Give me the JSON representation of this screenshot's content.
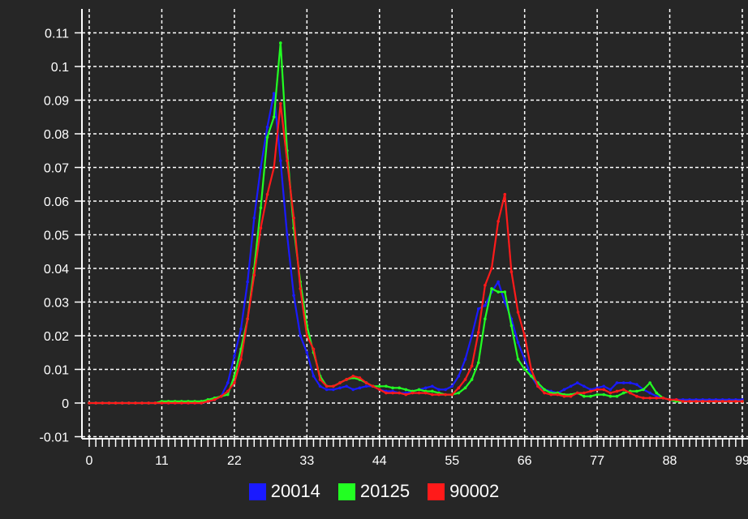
{
  "chart_data": {
    "type": "line",
    "title": "",
    "xlabel": "",
    "ylabel": "",
    "xlim": [
      0,
      99
    ],
    "ylim": [
      -0.01,
      0.115
    ],
    "grid": true,
    "legend_position": "bottom-center",
    "x_ticks": [
      0,
      11,
      22,
      33,
      44,
      55,
      66,
      77,
      88,
      99
    ],
    "y_ticks": [
      -0.01,
      0,
      0.01,
      0.02,
      0.03,
      0.04,
      0.05,
      0.06,
      0.07,
      0.08,
      0.09,
      0.1,
      0.11
    ],
    "x_tick_labels": [
      "0",
      "11",
      "22",
      "33",
      "44",
      "55",
      "66",
      "77",
      "88",
      "99"
    ],
    "y_tick_labels": [
      "-0.01",
      "0",
      "0.01",
      "0.02",
      "0.03",
      "0.04",
      "0.05",
      "0.06",
      "0.07",
      "0.08",
      "0.09",
      "0.1",
      "0.11"
    ],
    "x": [
      0,
      1,
      2,
      3,
      4,
      5,
      6,
      7,
      8,
      9,
      10,
      11,
      12,
      13,
      14,
      15,
      16,
      17,
      18,
      19,
      20,
      21,
      22,
      23,
      24,
      25,
      26,
      27,
      28,
      29,
      30,
      31,
      32,
      33,
      34,
      35,
      36,
      37,
      38,
      39,
      40,
      41,
      42,
      43,
      44,
      45,
      46,
      47,
      48,
      49,
      50,
      51,
      52,
      53,
      54,
      55,
      56,
      57,
      58,
      59,
      60,
      61,
      62,
      63,
      64,
      65,
      66,
      67,
      68,
      69,
      70,
      71,
      72,
      73,
      74,
      75,
      76,
      77,
      78,
      79,
      80,
      81,
      82,
      83,
      84,
      85,
      86,
      87,
      88,
      89,
      90,
      91,
      92,
      93,
      94,
      95,
      96,
      97,
      98,
      99
    ],
    "series": [
      {
        "name": "20014",
        "color": "#1a1aff",
        "values": [
          0,
          0,
          0,
          0,
          0,
          0,
          0,
          0,
          0,
          0,
          0,
          0,
          0,
          0,
          0,
          0,
          0,
          0,
          0.0005,
          0.001,
          0.002,
          0.006,
          0.014,
          0.022,
          0.036,
          0.055,
          0.07,
          0.082,
          0.092,
          0.072,
          0.05,
          0.032,
          0.02,
          0.015,
          0.008,
          0.005,
          0.004,
          0.004,
          0.0045,
          0.005,
          0.004,
          0.0045,
          0.005,
          0.005,
          0.004,
          0.0035,
          0.0035,
          0.003,
          0.003,
          0.0035,
          0.004,
          0.0045,
          0.005,
          0.004,
          0.004,
          0.005,
          0.008,
          0.013,
          0.02,
          0.028,
          0.029,
          0.033,
          0.036,
          0.03,
          0.025,
          0.018,
          0.013,
          0.008,
          0.005,
          0.004,
          0.0035,
          0.003,
          0.004,
          0.005,
          0.006,
          0.005,
          0.004,
          0.0045,
          0.005,
          0.004,
          0.006,
          0.006,
          0.006,
          0.0055,
          0.004,
          0.003,
          0.002,
          0.0015,
          0.001,
          0.001,
          0.001,
          0.001,
          0.001,
          0.001,
          0.001,
          0.001,
          0.001,
          0.001,
          0.001,
          0.001
        ]
      },
      {
        "name": "20125",
        "color": "#22ff22",
        "values": [
          0,
          0,
          0,
          0,
          0,
          0,
          0,
          0,
          0,
          0,
          0,
          0.0005,
          0.0005,
          0.0005,
          0.0005,
          0.0005,
          0.0005,
          0.0005,
          0.001,
          0.0015,
          0.002,
          0.0025,
          0.008,
          0.016,
          0.025,
          0.04,
          0.058,
          0.079,
          0.085,
          0.107,
          0.075,
          0.052,
          0.036,
          0.023,
          0.015,
          0.008,
          0.005,
          0.005,
          0.006,
          0.007,
          0.0075,
          0.007,
          0.006,
          0.005,
          0.005,
          0.005,
          0.0045,
          0.0045,
          0.004,
          0.0035,
          0.004,
          0.0035,
          0.0035,
          0.003,
          0.0025,
          0.0025,
          0.003,
          0.0045,
          0.007,
          0.012,
          0.025,
          0.034,
          0.033,
          0.033,
          0.023,
          0.013,
          0.01,
          0.008,
          0.006,
          0.004,
          0.003,
          0.003,
          0.0025,
          0.0025,
          0.003,
          0.002,
          0.002,
          0.0025,
          0.0025,
          0.002,
          0.002,
          0.003,
          0.0035,
          0.0035,
          0.004,
          0.006,
          0.003,
          0.0015,
          0.001,
          0.0005,
          0.0005,
          0.0005,
          0.0005,
          0.0005,
          0.0005,
          0.0005,
          0.0005,
          0.0005,
          0.0005,
          0.0005
        ]
      },
      {
        "name": "90002",
        "color": "#ff1a1a",
        "values": [
          0,
          0,
          0,
          0,
          0,
          0,
          0,
          0,
          0,
          0,
          0,
          0,
          0,
          0,
          0,
          0,
          0,
          0,
          0.0005,
          0.001,
          0.002,
          0.0035,
          0.006,
          0.013,
          0.025,
          0.038,
          0.052,
          0.062,
          0.07,
          0.089,
          0.072,
          0.055,
          0.034,
          0.02,
          0.016,
          0.007,
          0.005,
          0.005,
          0.006,
          0.007,
          0.008,
          0.0075,
          0.006,
          0.005,
          0.004,
          0.003,
          0.003,
          0.003,
          0.0025,
          0.003,
          0.003,
          0.003,
          0.0025,
          0.0025,
          0.0025,
          0.0025,
          0.0045,
          0.007,
          0.011,
          0.021,
          0.035,
          0.04,
          0.054,
          0.062,
          0.039,
          0.027,
          0.02,
          0.01,
          0.005,
          0.003,
          0.0025,
          0.0025,
          0.002,
          0.002,
          0.003,
          0.003,
          0.0035,
          0.004,
          0.004,
          0.003,
          0.0035,
          0.004,
          0.003,
          0.002,
          0.0015,
          0.0015,
          0.0015,
          0.0015,
          0.001,
          0.001,
          0.0005,
          0.0005,
          0.0005,
          0.0005,
          0.0005,
          0.0005,
          0.0005,
          0.0005,
          0.0005,
          0.0005
        ]
      }
    ]
  }
}
